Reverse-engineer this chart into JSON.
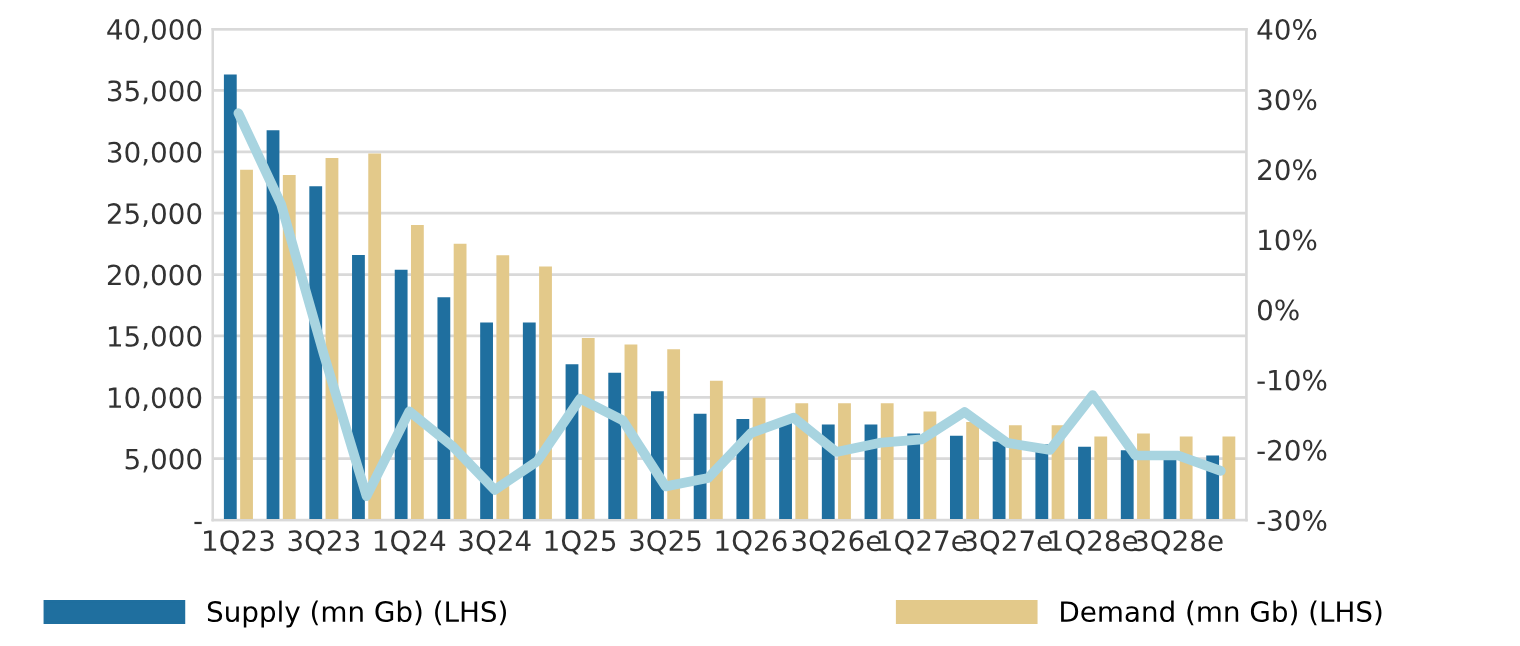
{
  "chart_data": {
    "type": "bar",
    "categories": [
      "1Q23",
      null,
      "3Q23",
      null,
      "1Q24",
      null,
      "3Q24",
      null,
      "1Q25",
      null,
      "3Q25",
      null,
      "1Q26",
      null,
      "3Q26e",
      null,
      "1Q27e",
      null,
      "3Q27e",
      null,
      "1Q28e",
      null,
      "3Q28e",
      null
    ],
    "series": [
      {
        "name": "Supply (mn Gb) (LHS)",
        "color": "#1f6f9f",
        "values": [
          36300,
          31750,
          27200,
          21600,
          20400,
          18150,
          16100,
          16100,
          12700,
          12000,
          10500,
          8650,
          8230,
          8080,
          7780,
          7780,
          7060,
          6860,
          6400,
          6180,
          5980,
          5680,
          5060,
          5260
        ]
      },
      {
        "name": "Demand (mn Gb) (LHS)",
        "color": "#e3c98a",
        "values": [
          28530,
          28120,
          29500,
          29870,
          24040,
          22500,
          21580,
          20660,
          14830,
          14310,
          13910,
          11350,
          9970,
          9510,
          9510,
          9510,
          8850,
          7980,
          7720,
          7720,
          6800,
          7060,
          6800,
          6800
        ]
      },
      {
        "type": "line",
        "axis": "y2",
        "color": "#a8d4e0",
        "values": [
          28,
          15,
          -6.4,
          -26.6,
          -14.5,
          -19.4,
          -25.7,
          -21.6,
          -12.7,
          -15.8,
          -25.2,
          -24,
          -17.6,
          -15.4,
          -20.3,
          -19,
          -18.5,
          -14.6,
          -19,
          -20,
          -12.2,
          -20.8,
          -20.8,
          -23
        ]
      }
    ],
    "ylim": [
      0,
      40000
    ],
    "yticks": [
      {
        "value": 0,
        "label": "-"
      },
      {
        "value": 5000,
        "label": "5,000"
      },
      {
        "value": 10000,
        "label": "10,000"
      },
      {
        "value": 15000,
        "label": "15,000"
      },
      {
        "value": 20000,
        "label": "20,000"
      },
      {
        "value": 25000,
        "label": "25,000"
      },
      {
        "value": 30000,
        "label": "30,000"
      },
      {
        "value": 35000,
        "label": "35,000"
      },
      {
        "value": 40000,
        "label": "40,000"
      }
    ],
    "y2lim": [
      -30,
      40
    ],
    "y2ticks": [
      {
        "value": -30,
        "label": "-30%"
      },
      {
        "value": -20,
        "label": "-20%"
      },
      {
        "value": -10,
        "label": "-10%"
      },
      {
        "value": 0,
        "label": "0%"
      },
      {
        "value": 10,
        "label": "10%"
      },
      {
        "value": 20,
        "label": "20%"
      },
      {
        "value": 30,
        "label": "30%"
      },
      {
        "value": 40,
        "label": "40%"
      }
    ],
    "grid": "y",
    "legend": "bottom"
  }
}
